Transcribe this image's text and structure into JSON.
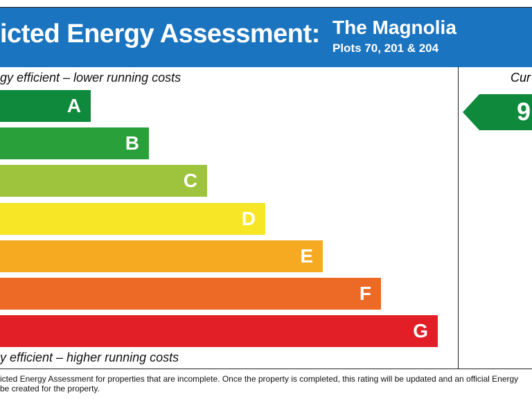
{
  "header": {
    "title": "icted Energy Assessment:",
    "property_name": "The Magnolia",
    "plots": "Plots 70, 201 & 204"
  },
  "top_label": "gy efficient – lower running costs",
  "bottom_label": "y efficient – higher running costs",
  "ratings": [
    "A",
    "B",
    "C",
    "D",
    "E",
    "F",
    "G"
  ],
  "current": {
    "label": "Cur",
    "value": "9"
  },
  "footer": [
    "icted Energy Assessment for properties that are incomplete. Once the property is completed, this rating will be updated and an official Energy",
    "be created for the property."
  ]
}
